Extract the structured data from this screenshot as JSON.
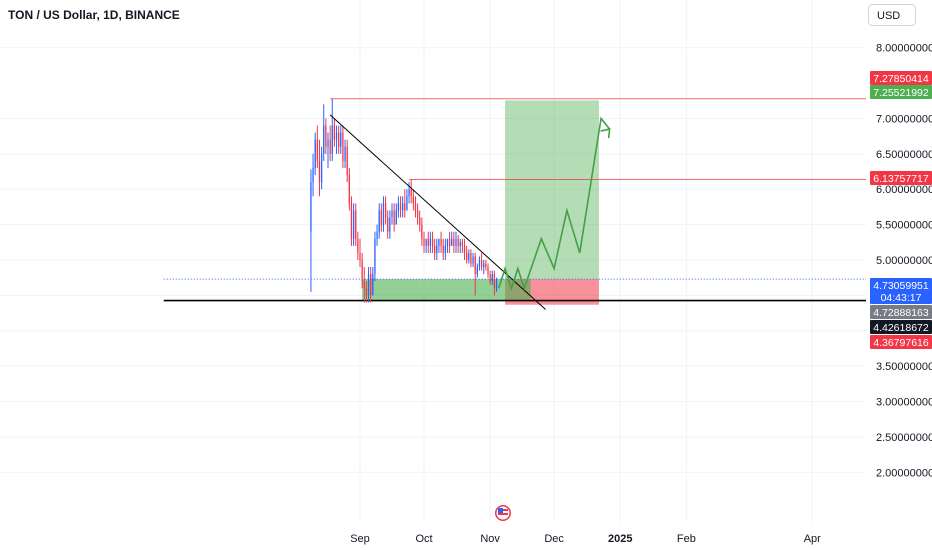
{
  "header": {
    "title": "TON / US Dollar, 1D, BINANCE",
    "currency_button": "USD"
  },
  "colors": {
    "up": "#2962ff",
    "down": "#f23645",
    "target_zone": "#4caf50",
    "stop_zone": "#f23645",
    "trendline": "#000000",
    "projection": "#43a047",
    "current_price_line": "#2962ff"
  },
  "chart_data": {
    "type": "candlestick",
    "symbol": "TON / US Dollar",
    "interval": "1D",
    "exchange": "BINANCE",
    "y_axis": {
      "ylim": [
        1.75,
        8.25
      ],
      "ticks": [
        "8.00000000",
        "7.00000000",
        "6.50000000",
        "6.00000000",
        "5.50000000",
        "5.00000000",
        "3.50000000",
        "3.00000000",
        "2.50000000",
        "2.00000000"
      ],
      "tick_values": [
        8.0,
        7.0,
        6.5,
        6.0,
        5.5,
        5.0,
        3.5,
        3.0,
        2.5,
        2.0
      ]
    },
    "x_axis": {
      "ticks": [
        "Sep",
        "Oct",
        "Nov",
        "Dec",
        "2025",
        "Feb",
        "Apr"
      ],
      "tick_dates": [
        "2024-09-01",
        "2024-10-01",
        "2024-11-01",
        "2024-12-01",
        "2025-01-01",
        "2025-02-01",
        "2025-04-01"
      ]
    },
    "price_labels": [
      {
        "value": "7.27850414",
        "price": 7.2785,
        "color": "#f23645"
      },
      {
        "value": "7.25521992",
        "price": 7.2552,
        "color": "#4caf50"
      },
      {
        "value": "6.13757717",
        "price": 6.1376,
        "color": "#f23645"
      },
      {
        "value": "4.73059951",
        "sub": "04:43:17",
        "price": 4.7306,
        "color": "#2962ff"
      },
      {
        "value": "4.72888163",
        "price": 4.7289,
        "color": "#787b86"
      },
      {
        "value": "4.42618672",
        "price": 4.4262,
        "color": "#131722"
      },
      {
        "value": "4.36797616",
        "price": 4.368,
        "color": "#f23645"
      }
    ],
    "candles": [
      [
        "2024-08-09",
        5.4,
        6.28,
        4.55,
        6.1
      ],
      [
        "2024-08-10",
        6.1,
        6.5,
        5.9,
        6.3
      ],
      [
        "2024-08-11",
        6.3,
        6.8,
        6.2,
        6.7
      ],
      [
        "2024-08-12",
        6.7,
        6.9,
        6.3,
        6.4
      ],
      [
        "2024-08-13",
        6.4,
        6.7,
        5.9,
        6.1
      ],
      [
        "2024-08-14",
        6.1,
        6.6,
        6.0,
        6.5
      ],
      [
        "2024-08-15",
        6.5,
        7.2,
        6.4,
        6.9
      ],
      [
        "2024-08-16",
        6.9,
        7.0,
        6.5,
        6.6
      ],
      [
        "2024-08-17",
        6.6,
        6.8,
        6.3,
        6.7
      ],
      [
        "2024-08-18",
        6.7,
        6.9,
        6.4,
        6.5
      ],
      [
        "2024-08-19",
        6.5,
        7.28,
        6.4,
        6.9
      ],
      [
        "2024-08-20",
        6.9,
        7.0,
        6.6,
        6.7
      ],
      [
        "2024-08-21",
        6.7,
        6.9,
        6.5,
        6.8
      ],
      [
        "2024-08-22",
        6.8,
        6.9,
        6.5,
        6.6
      ],
      [
        "2024-08-23",
        6.6,
        6.9,
        6.5,
        6.8
      ],
      [
        "2024-08-24",
        6.8,
        6.9,
        6.3,
        6.4
      ],
      [
        "2024-08-25",
        6.4,
        6.7,
        6.3,
        6.6
      ],
      [
        "2024-08-26",
        6.6,
        6.7,
        6.1,
        6.2
      ],
      [
        "2024-08-27",
        6.2,
        6.3,
        5.7,
        5.8
      ],
      [
        "2024-08-28",
        5.8,
        5.9,
        5.2,
        5.3
      ],
      [
        "2024-08-29",
        5.3,
        5.8,
        5.2,
        5.7
      ],
      [
        "2024-08-30",
        5.7,
        5.8,
        5.2,
        5.3
      ],
      [
        "2024-08-31",
        5.3,
        5.4,
        5.0,
        5.1
      ],
      [
        "2024-09-01",
        5.1,
        5.3,
        4.9,
        5.0
      ],
      [
        "2024-09-02",
        5.0,
        5.1,
        4.6,
        4.7
      ],
      [
        "2024-09-03",
        4.7,
        4.9,
        4.4,
        4.6
      ],
      [
        "2024-09-04",
        4.6,
        4.7,
        4.4,
        4.5
      ],
      [
        "2024-09-05",
        4.5,
        4.9,
        4.4,
        4.8
      ],
      [
        "2024-09-06",
        4.8,
        4.9,
        4.4,
        4.5
      ],
      [
        "2024-09-07",
        4.5,
        4.9,
        4.5,
        4.8
      ],
      [
        "2024-09-08",
        4.8,
        5.4,
        4.7,
        5.3
      ],
      [
        "2024-09-09",
        5.3,
        5.5,
        5.2,
        5.4
      ],
      [
        "2024-09-10",
        5.4,
        5.8,
        5.3,
        5.7
      ],
      [
        "2024-09-11",
        5.7,
        5.8,
        5.4,
        5.5
      ],
      [
        "2024-09-12",
        5.5,
        5.9,
        5.4,
        5.8
      ],
      [
        "2024-09-13",
        5.8,
        5.9,
        5.5,
        5.6
      ],
      [
        "2024-09-14",
        5.6,
        5.7,
        5.3,
        5.4
      ],
      [
        "2024-09-15",
        5.4,
        5.7,
        5.3,
        5.6
      ],
      [
        "2024-09-16",
        5.6,
        5.8,
        5.5,
        5.7
      ],
      [
        "2024-09-17",
        5.7,
        5.8,
        5.4,
        5.5
      ],
      [
        "2024-09-18",
        5.5,
        5.8,
        5.5,
        5.7
      ],
      [
        "2024-09-19",
        5.7,
        5.9,
        5.6,
        5.8
      ],
      [
        "2024-09-20",
        5.8,
        5.9,
        5.6,
        5.7
      ],
      [
        "2024-09-21",
        5.7,
        5.9,
        5.6,
        5.8
      ],
      [
        "2024-09-22",
        5.8,
        6.0,
        5.6,
        5.7
      ],
      [
        "2024-09-23",
        5.7,
        6.0,
        5.7,
        5.9
      ],
      [
        "2024-09-24",
        5.9,
        6.1,
        5.8,
        6.0
      ],
      [
        "2024-09-25",
        6.0,
        6.14,
        5.8,
        5.9
      ],
      [
        "2024-09-26",
        5.9,
        6.0,
        5.7,
        5.8
      ],
      [
        "2024-09-27",
        5.8,
        5.9,
        5.6,
        5.7
      ],
      [
        "2024-09-28",
        5.7,
        5.8,
        5.5,
        5.6
      ],
      [
        "2024-09-29",
        5.6,
        5.7,
        5.4,
        5.5
      ],
      [
        "2024-09-30",
        5.5,
        5.6,
        5.2,
        5.3
      ],
      [
        "2024-10-01",
        5.3,
        5.4,
        5.1,
        5.2
      ],
      [
        "2024-10-02",
        5.2,
        5.3,
        5.1,
        5.3
      ],
      [
        "2024-10-03",
        5.3,
        5.4,
        5.1,
        5.2
      ],
      [
        "2024-10-04",
        5.2,
        5.4,
        5.1,
        5.3
      ],
      [
        "2024-10-05",
        5.3,
        5.4,
        5.1,
        5.2
      ],
      [
        "2024-10-06",
        5.2,
        5.3,
        5.0,
        5.1
      ],
      [
        "2024-10-07",
        5.1,
        5.3,
        5.0,
        5.2
      ],
      [
        "2024-10-08",
        5.2,
        5.3,
        5.1,
        5.3
      ],
      [
        "2024-10-09",
        5.3,
        5.4,
        5.1,
        5.2
      ],
      [
        "2024-10-10",
        5.2,
        5.3,
        5.0,
        5.1
      ],
      [
        "2024-10-11",
        5.1,
        5.3,
        5.0,
        5.2
      ],
      [
        "2024-10-12",
        5.2,
        5.3,
        5.1,
        5.3
      ],
      [
        "2024-10-13",
        5.3,
        5.4,
        5.1,
        5.2
      ],
      [
        "2024-10-14",
        5.2,
        5.4,
        5.2,
        5.3
      ],
      [
        "2024-10-15",
        5.3,
        5.4,
        5.1,
        5.2
      ],
      [
        "2024-10-16",
        5.2,
        5.4,
        5.1,
        5.3
      ],
      [
        "2024-10-17",
        5.3,
        5.35,
        5.1,
        5.2
      ],
      [
        "2024-10-18",
        5.2,
        5.3,
        5.1,
        5.25
      ],
      [
        "2024-10-19",
        5.25,
        5.3,
        5.1,
        5.2
      ],
      [
        "2024-10-20",
        5.2,
        5.3,
        5.0,
        5.1
      ],
      [
        "2024-10-21",
        5.1,
        5.2,
        4.95,
        5.0
      ],
      [
        "2024-10-22",
        5.0,
        5.15,
        4.95,
        5.1
      ],
      [
        "2024-10-23",
        5.1,
        5.15,
        4.9,
        4.95
      ],
      [
        "2024-10-24",
        4.95,
        5.1,
        4.9,
        5.05
      ],
      [
        "2024-10-25",
        5.05,
        5.1,
        4.5,
        4.8
      ],
      [
        "2024-10-26",
        4.8,
        4.95,
        4.75,
        4.9
      ],
      [
        "2024-10-27",
        4.9,
        5.05,
        4.85,
        5.0
      ],
      [
        "2024-10-28",
        5.0,
        5.1,
        4.85,
        4.9
      ],
      [
        "2024-10-29",
        4.9,
        5.0,
        4.8,
        4.95
      ],
      [
        "2024-10-30",
        4.95,
        5.0,
        4.85,
        4.9
      ],
      [
        "2024-10-31",
        4.9,
        4.95,
        4.75,
        4.8
      ],
      [
        "2024-11-01",
        4.8,
        4.85,
        4.65,
        4.7
      ],
      [
        "2024-11-02",
        4.7,
        4.85,
        4.65,
        4.8
      ],
      [
        "2024-11-03",
        4.8,
        4.85,
        4.5,
        4.6
      ],
      [
        "2024-11-04",
        4.6,
        4.75,
        4.55,
        4.73
      ]
    ],
    "trendline": [
      [
        "2024-08-18",
        7.05
      ],
      [
        "2024-11-27",
        4.3
      ]
    ],
    "horizontal_segments": [
      {
        "from": "2024-08-18",
        "to": "2025-04-30",
        "price": 7.2785,
        "color": "#f23645"
      },
      {
        "from": "2024-09-24",
        "to": "2025-04-30",
        "price": 6.1376,
        "color": "#f23645"
      },
      {
        "from": "2024-06-01",
        "to": "2025-04-30",
        "price": 4.4262,
        "color": "#000000"
      }
    ],
    "zones": [
      {
        "kind": "target",
        "from": "2024-11-08",
        "to": "2024-12-22",
        "top": 7.2552,
        "bottom": 4.73,
        "color": "#4caf50"
      },
      {
        "kind": "stop",
        "from": "2024-11-08",
        "to": "2024-12-22",
        "top": 4.73,
        "bottom": 4.368,
        "color": "#f23645"
      },
      {
        "kind": "base",
        "from": "2024-09-02",
        "to": "2024-11-20",
        "top": 4.73,
        "bottom": 4.43,
        "color": "#4caf50"
      }
    ],
    "projection_path": [
      [
        "2024-11-05",
        4.6
      ],
      [
        "2024-11-08",
        4.88
      ],
      [
        "2024-11-11",
        4.6
      ],
      [
        "2024-11-14",
        4.88
      ],
      [
        "2024-11-17",
        4.6
      ],
      [
        "2024-11-25",
        5.3
      ],
      [
        "2024-12-01",
        4.88
      ],
      [
        "2024-12-07",
        5.7
      ],
      [
        "2024-12-13",
        5.1
      ],
      [
        "2024-12-23",
        7.0
      ],
      [
        "2024-12-27",
        6.85
      ]
    ],
    "current_price": 4.7306,
    "current_price_start": "2024-06-01",
    "grid": true,
    "legend": "none"
  }
}
